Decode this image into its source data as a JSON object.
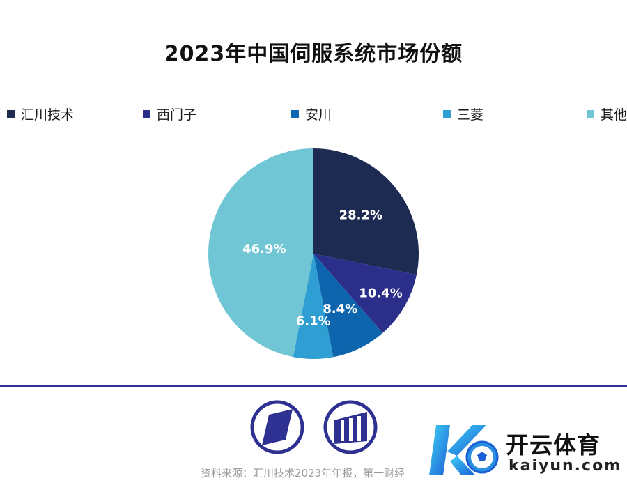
{
  "chart_data": {
    "type": "pie",
    "title": "2023年中国伺服系统市场份额",
    "categories": [
      "汇川技术",
      "西门子",
      "安川",
      "三菱",
      "其他"
    ],
    "values": [
      28.2,
      10.4,
      8.4,
      6.1,
      46.9
    ],
    "labels": [
      "28.2%",
      "10.4%",
      "8.4%",
      "6.1%",
      "46.9%"
    ],
    "colors": [
      "#1d2a52",
      "#2b2f8a",
      "#0d66ad",
      "#2e9ed3",
      "#70c6d4"
    ],
    "legend": "top"
  },
  "source_text": "资料来源：汇川技术2023年年报，第一财经",
  "watermark": {
    "cn": "开云体育",
    "en": "kaiyun.com"
  },
  "icons": {
    "left": "parallelogram-logo-icon",
    "right": "bar-logo-icon"
  }
}
